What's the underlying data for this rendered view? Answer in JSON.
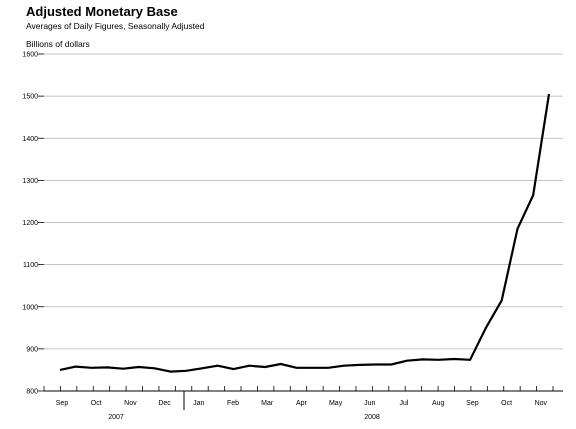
{
  "chart_data": {
    "type": "line",
    "title": "Adjusted Monetary Base",
    "subtitle": "Averages of Daily Figures, Seasonally Adjusted",
    "ylabel": "Billions of dollars",
    "xlabel": "",
    "ylim": [
      800,
      1600
    ],
    "yticks": [
      800,
      900,
      1000,
      1100,
      1200,
      1300,
      1400,
      1500,
      1600
    ],
    "grid": true,
    "month_labels": [
      "Sep",
      "Oct",
      "Nov",
      "Dec",
      "Jan",
      "Feb",
      "Mar",
      "Apr",
      "May",
      "Jun",
      "Jul",
      "Aug",
      "Sep",
      "Oct",
      "Nov"
    ],
    "year_labels": [
      "2007",
      "2008"
    ],
    "series": [
      {
        "values": [
          850,
          858,
          855,
          856,
          853,
          857,
          854,
          846,
          848,
          854,
          860,
          852,
          860,
          857,
          864,
          855,
          855,
          855,
          860,
          862,
          863,
          863,
          872,
          875,
          874,
          876,
          874,
          950,
          1015,
          1185,
          1265,
          1505
        ],
        "color": "#000000"
      }
    ]
  }
}
